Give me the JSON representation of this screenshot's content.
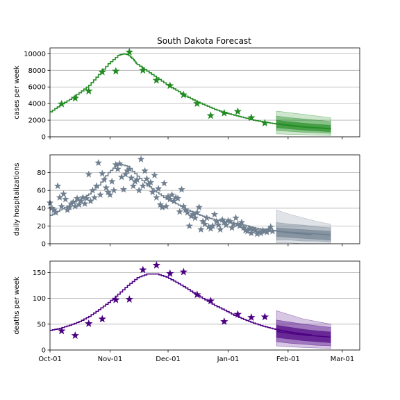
{
  "title": "South Dakota Forecast",
  "x_tick_labels": [
    "Oct-01",
    "Nov-01",
    "Dec-01",
    "Jan-01",
    "Feb-01",
    "Mar-01"
  ],
  "chart_data": [
    {
      "type": "line",
      "ylabel": "cases per week",
      "color": "#228B22",
      "ylim": [
        0,
        10700
      ],
      "yticks": [
        0,
        2000,
        4000,
        6000,
        8000,
        10000
      ],
      "xlim_days": [
        0,
        160
      ],
      "grid": "horizontal",
      "model_line": {
        "x": [
          0,
          5,
          10,
          15,
          20,
          25,
          30,
          35,
          38,
          40,
          43,
          45,
          50,
          55,
          60,
          65,
          70,
          75,
          80,
          85,
          90,
          95,
          100,
          105,
          110,
          115,
          120,
          125,
          130,
          135,
          140,
          145
        ],
        "y": [
          3000,
          3800,
          4500,
          5300,
          6200,
          7500,
          8800,
          9800,
          10000,
          9900,
          9300,
          8700,
          7900,
          7100,
          6300,
          5600,
          4900,
          4300,
          3800,
          3300,
          2900,
          2600,
          2300,
          2000,
          1800,
          1600,
          1450,
          1300,
          1200,
          1100,
          1050,
          950
        ]
      },
      "observed": {
        "x": [
          6,
          13,
          20,
          27,
          34,
          41,
          48,
          55,
          62,
          69,
          76,
          83,
          90,
          97,
          104,
          111
        ],
        "y": [
          3950,
          4650,
          5500,
          7800,
          7900,
          10200,
          8000,
          6800,
          6150,
          5050,
          4000,
          2550,
          2850,
          3050,
          2300,
          1650
        ]
      },
      "forecast": {
        "x": [
          117,
          124,
          131,
          138,
          145
        ],
        "median": [
          1600,
          1400,
          1200,
          1100,
          950
        ],
        "band_50": [
          [
            1100,
            2000
          ],
          [
            950,
            1800
          ],
          [
            800,
            1650
          ],
          [
            700,
            1500
          ],
          [
            600,
            1400
          ]
        ],
        "band_80": [
          [
            750,
            2500
          ],
          [
            650,
            2300
          ],
          [
            550,
            2150
          ],
          [
            480,
            2000
          ],
          [
            400,
            1850
          ]
        ],
        "band_95": [
          [
            350,
            3100
          ],
          [
            300,
            2900
          ],
          [
            250,
            2700
          ],
          [
            200,
            2500
          ],
          [
            150,
            2300
          ]
        ]
      }
    },
    {
      "type": "line",
      "ylabel": "daily hospitalizations",
      "color": "#708090",
      "ylim": [
        0,
        100
      ],
      "yticks": [
        0,
        20,
        40,
        60,
        80
      ],
      "xlim_days": [
        0,
        160
      ],
      "grid": "horizontal",
      "model_line": {
        "x": [
          0,
          5,
          10,
          15,
          20,
          25,
          30,
          35,
          40,
          45,
          50,
          55,
          60,
          65,
          70,
          75,
          80,
          85,
          90,
          95,
          100,
          105,
          110,
          115,
          120,
          125,
          130,
          135
        ],
        "y": [
          32,
          38,
          44,
          50,
          56,
          66,
          80,
          90,
          87,
          76,
          66,
          58,
          50,
          45,
          39,
          34,
          30,
          27,
          25,
          23,
          21,
          18,
          16,
          15,
          13,
          12,
          11,
          10
        ]
      },
      "observed": {
        "x": [
          0,
          1,
          2,
          3,
          4,
          5,
          6,
          7,
          8,
          9,
          10,
          11,
          12,
          13,
          14,
          15,
          16,
          17,
          18,
          19,
          20,
          21,
          22,
          23,
          24,
          25,
          26,
          27,
          28,
          29,
          30,
          31,
          32,
          33,
          34,
          35,
          36,
          37,
          38,
          39,
          40,
          41,
          42,
          43,
          44,
          45,
          46,
          47,
          48,
          49,
          50,
          51,
          52,
          53,
          54,
          55,
          56,
          57,
          58,
          59,
          60,
          61,
          62,
          63,
          64,
          65,
          66,
          67,
          68,
          69,
          70,
          71,
          72,
          73,
          74,
          75,
          76,
          77,
          78,
          79,
          80,
          81,
          82,
          83,
          84,
          85,
          86,
          87,
          88,
          89,
          90,
          91,
          92,
          93,
          94,
          95,
          96,
          97,
          98,
          99,
          100,
          101,
          102,
          103,
          104,
          105,
          106,
          107,
          108,
          109,
          110,
          111,
          112,
          113,
          114,
          115
        ],
        "y": [
          46,
          40,
          38,
          35,
          65,
          52,
          42,
          56,
          50,
          38,
          41,
          45,
          47,
          42,
          51,
          44,
          48,
          52,
          45,
          51,
          78,
          48,
          60,
          52,
          65,
          91,
          55,
          79,
          72,
          63,
          58,
          55,
          70,
          60,
          89,
          84,
          90,
          75,
          61,
          78,
          82,
          84,
          74,
          65,
          70,
          72,
          60,
          95,
          65,
          82,
          73,
          67,
          69,
          58,
          77,
          52,
          62,
          44,
          41,
          68,
          42,
          53,
          50,
          55,
          48,
          52,
          51,
          36,
          61,
          42,
          38,
          35,
          20,
          31,
          33,
          29,
          35,
          41,
          16,
          25,
          22,
          29,
          19,
          17,
          20,
          33,
          25,
          21,
          16,
          27,
          24,
          21,
          26,
          25,
          18,
          22,
          29,
          22,
          20,
          24,
          18,
          15,
          14,
          17,
          12,
          16,
          15,
          11,
          13,
          12,
          15,
          14,
          13,
          16,
          19,
          14
        ]
      },
      "forecast": {
        "x": [
          117,
          124,
          131,
          138,
          145
        ],
        "median": [
          14,
          13,
          12,
          11,
          10
        ],
        "band_50": [
          [
            8,
            18
          ],
          [
            7,
            17
          ],
          [
            6,
            16
          ],
          [
            5,
            15
          ],
          [
            4,
            14
          ]
        ],
        "band_80": [
          [
            4,
            24
          ],
          [
            4,
            22
          ],
          [
            3,
            21
          ],
          [
            3,
            19
          ],
          [
            2,
            18
          ]
        ],
        "band_95": [
          [
            1,
            38
          ],
          [
            1,
            33
          ],
          [
            0,
            29
          ],
          [
            0,
            25
          ],
          [
            0,
            22
          ]
        ]
      }
    },
    {
      "type": "line",
      "ylabel": "deaths per week",
      "color": "#4B0082",
      "ylim": [
        0,
        172
      ],
      "yticks": [
        0,
        50,
        100,
        150
      ],
      "xlim_days": [
        0,
        160
      ],
      "grid": "horizontal",
      "model_line": {
        "x": [
          0,
          5,
          10,
          15,
          20,
          25,
          30,
          35,
          40,
          45,
          50,
          55,
          60,
          65,
          70,
          75,
          80,
          85,
          90,
          95,
          100,
          105,
          110,
          115,
          120,
          125,
          130,
          135
        ],
        "y": [
          38,
          42,
          48,
          55,
          65,
          78,
          92,
          108,
          125,
          140,
          147,
          147,
          141,
          131,
          120,
          108,
          97,
          86,
          77,
          67,
          59,
          52,
          46,
          41,
          37,
          34,
          31,
          29
        ]
      },
      "observed": {
        "x": [
          6,
          13,
          20,
          27,
          34,
          41,
          48,
          55,
          62,
          69,
          76,
          83,
          90,
          97,
          104,
          111
        ],
        "y": [
          37,
          28,
          51,
          60,
          97,
          98,
          155,
          164,
          148,
          151,
          107,
          95,
          55,
          69,
          63,
          64
        ]
      },
      "forecast": {
        "x": [
          117,
          124,
          131,
          138,
          145
        ],
        "median": [
          36,
          32,
          29,
          27,
          25
        ],
        "band_50": [
          [
            24,
            48
          ],
          [
            21,
            44
          ],
          [
            18,
            40
          ],
          [
            16,
            37
          ],
          [
            14,
            35
          ]
        ],
        "band_80": [
          [
            16,
            58
          ],
          [
            13,
            54
          ],
          [
            11,
            50
          ],
          [
            9,
            47
          ],
          [
            8,
            44
          ]
        ],
        "band_95": [
          [
            8,
            76
          ],
          [
            6,
            68
          ],
          [
            5,
            60
          ],
          [
            4,
            55
          ],
          [
            3,
            50
          ]
        ]
      }
    }
  ]
}
